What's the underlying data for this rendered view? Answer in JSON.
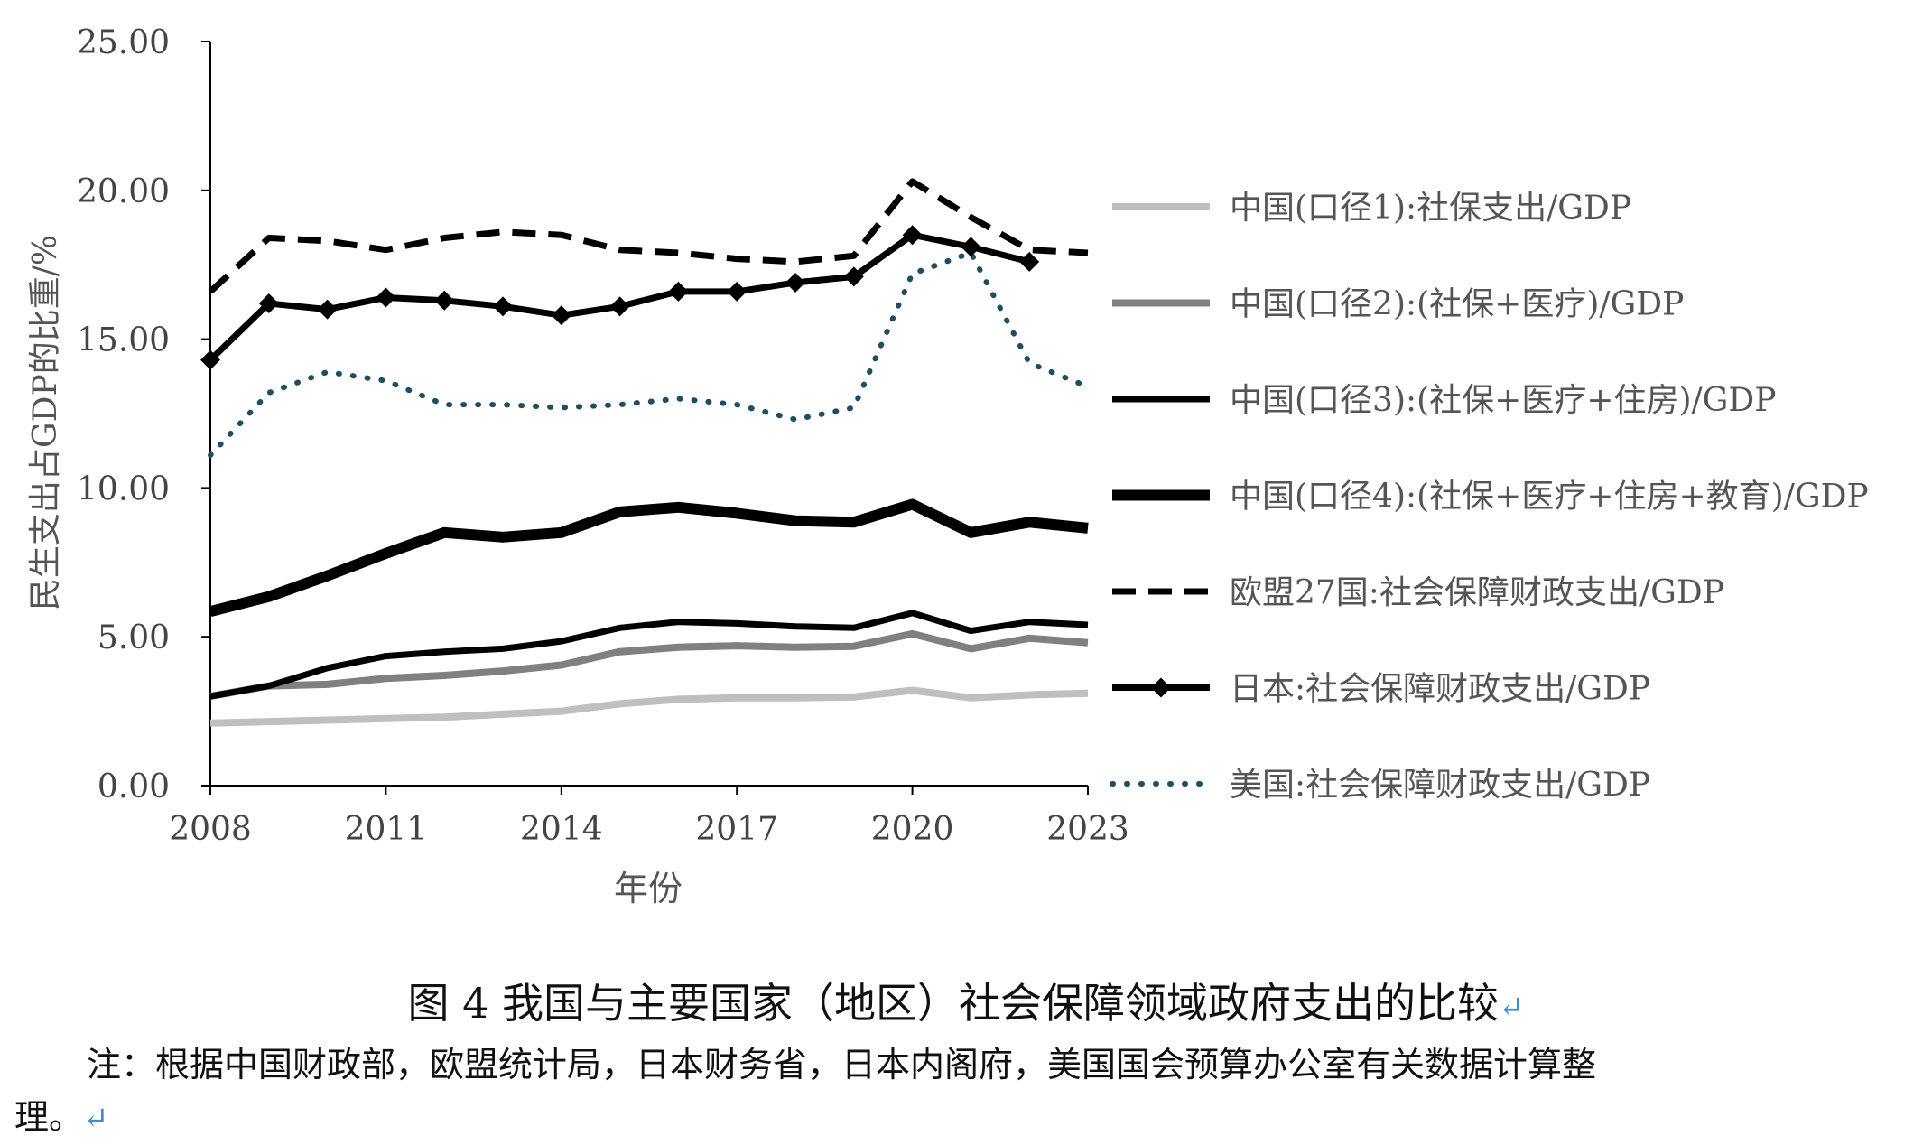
{
  "chart_data": {
    "type": "line",
    "title": "",
    "xlabel": "年份",
    "ylabel": "民生支出占GDP的比重/%",
    "ylim": [
      0,
      25
    ],
    "xlim": [
      2008,
      2023
    ],
    "yticks": [
      "0.00",
      "5.00",
      "10.00",
      "15.00",
      "20.00",
      "25.00"
    ],
    "xticks": [
      "2008",
      "2011",
      "2014",
      "2017",
      "2020",
      "2023"
    ],
    "x": [
      2008,
      2009,
      2010,
      2011,
      2012,
      2013,
      2014,
      2015,
      2016,
      2017,
      2018,
      2019,
      2020,
      2021,
      2022,
      2023
    ],
    "series": [
      {
        "name": "中国(口径1):社保支出/GDP",
        "color": "#bfbfbf",
        "style": "solid-light",
        "values": [
          2.1,
          2.15,
          2.2,
          2.25,
          2.3,
          2.4,
          2.5,
          2.75,
          2.9,
          2.95,
          2.95,
          2.98,
          3.2,
          2.95,
          3.05,
          3.1
        ]
      },
      {
        "name": "中国(口径2):(社保+医疗)/GDP",
        "color": "#808080",
        "style": "solid-gray",
        "values": [
          3.0,
          3.35,
          3.4,
          3.6,
          3.7,
          3.85,
          4.05,
          4.5,
          4.65,
          4.7,
          4.65,
          4.68,
          5.1,
          4.6,
          4.95,
          4.8
        ]
      },
      {
        "name": "中国(口径3):(社保+医疗+住房)/GDP",
        "color": "#000000",
        "style": "solid",
        "values": [
          3.0,
          3.35,
          3.95,
          4.35,
          4.5,
          4.6,
          4.85,
          5.3,
          5.5,
          5.45,
          5.35,
          5.3,
          5.8,
          5.2,
          5.5,
          5.4
        ]
      },
      {
        "name": "中国(口径4):(社保+医疗+住房+教育)/GDP",
        "color": "#000000",
        "style": "solid-thick",
        "values": [
          5.85,
          6.35,
          7.05,
          7.8,
          8.5,
          8.35,
          8.5,
          9.2,
          9.35,
          9.15,
          8.9,
          8.85,
          9.45,
          8.5,
          8.85,
          8.65
        ]
      },
      {
        "name": "欧盟27国:社会保障财政支出/GDP",
        "color": "#000000",
        "style": "dashed",
        "values": [
          16.6,
          18.4,
          18.3,
          18.0,
          18.4,
          18.6,
          18.5,
          18.0,
          17.9,
          17.7,
          17.6,
          17.8,
          20.3,
          19.1,
          18.0,
          17.9
        ]
      },
      {
        "name": "日本:社会保障财政支出/GDP",
        "color": "#000000",
        "style": "diamond",
        "values": [
          14.3,
          16.2,
          16.0,
          16.4,
          16.3,
          16.1,
          15.8,
          16.1,
          16.6,
          16.6,
          16.9,
          17.1,
          18.5,
          18.1,
          17.6,
          null
        ]
      },
      {
        "name": "美国:社会保障财政支出/GDP",
        "color": "#1f4e63",
        "style": "dotted",
        "values": [
          11.1,
          13.2,
          13.9,
          13.6,
          12.8,
          12.8,
          12.7,
          12.8,
          13.0,
          12.8,
          12.3,
          12.7,
          17.2,
          17.9,
          14.2,
          13.4
        ]
      }
    ]
  },
  "caption": "图 4  我国与主要国家（地区）社会保障领域政府支出的比较",
  "note_line1": "注：根据中国财政部，欧盟统计局，日本财务省，日本内阁府，美国国会预算办公室有关数据计算整",
  "note_line2": "理。",
  "return_mark": "↵"
}
